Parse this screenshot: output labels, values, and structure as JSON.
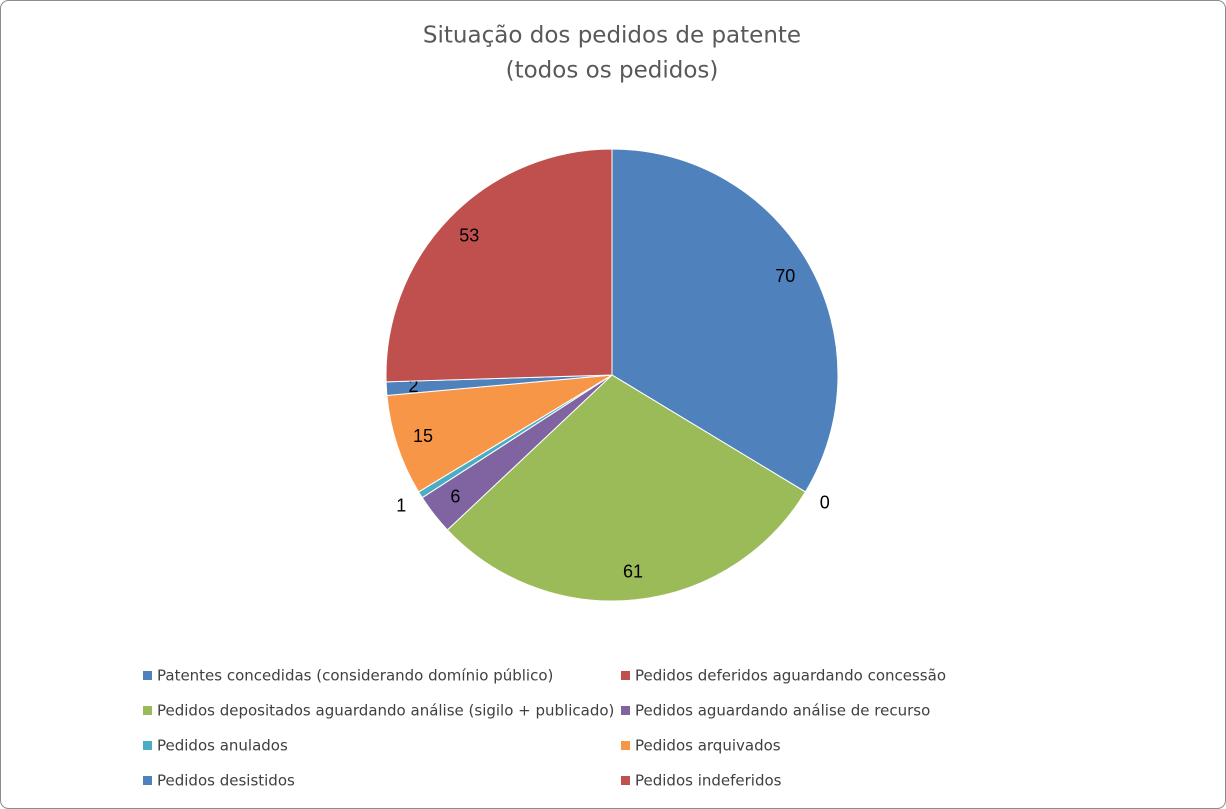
{
  "chart_data": {
    "type": "pie",
    "title": "Situação dos pedidos de patente",
    "subtitle": "(todos os pedidos)",
    "categories": [
      "Patentes concedidas (considerando domínio público)",
      "Pedidos deferidos aguardando concessão",
      "Pedidos depositados aguardando análise (sigilo + publicado)",
      "Pedidos aguardando análise de recurso",
      "Pedidos anulados",
      "Pedidos arquivados",
      "Pedidos desistidos",
      "Pedidos indeferidos"
    ],
    "values": [
      70,
      0,
      61,
      6,
      1,
      15,
      2,
      53
    ],
    "colors": [
      "#4f81bd",
      "#c0504d",
      "#9bbb59",
      "#8064a2",
      "#4bacc6",
      "#f79646",
      "#4f81bd",
      "#c0504d"
    ],
    "legend": "bottom"
  }
}
